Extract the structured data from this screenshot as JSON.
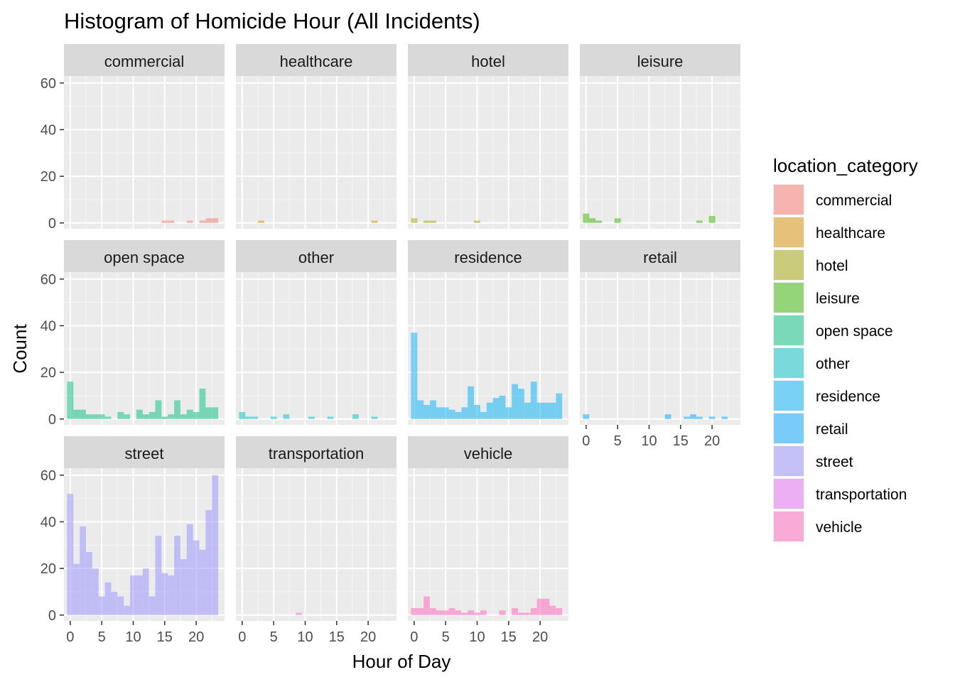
{
  "chart_data": {
    "type": "bar",
    "title": "Histogram of Homicide Hour (All Incidents)",
    "xlabel": "Hour of Day",
    "ylabel": "Count",
    "xlim": [
      -1,
      24.5
    ],
    "ylim": [
      -2.5,
      63
    ],
    "x_ticks": [
      0,
      5,
      10,
      15,
      20
    ],
    "y_ticks": [
      0,
      20,
      40,
      60
    ],
    "grid": true,
    "legend": {
      "title": "location_category",
      "position": "right"
    },
    "hours": [
      0,
      1,
      2,
      3,
      4,
      5,
      6,
      7,
      8,
      9,
      10,
      11,
      12,
      13,
      14,
      15,
      16,
      17,
      18,
      19,
      20,
      21,
      22,
      23
    ],
    "series": [
      {
        "name": "commercial",
        "color": "#F8766D",
        "values": [
          0,
          0,
          0,
          0,
          0,
          0,
          0,
          0,
          0,
          0,
          0,
          0,
          0,
          0,
          0,
          1,
          1,
          0,
          0,
          1,
          0,
          1,
          2,
          2
        ]
      },
      {
        "name": "healthcare",
        "color": "#D89000",
        "values": [
          0,
          0,
          0,
          1,
          0,
          0,
          0,
          0,
          0,
          0,
          0,
          0,
          0,
          0,
          0,
          0,
          0,
          0,
          0,
          0,
          0,
          1,
          0,
          0
        ]
      },
      {
        "name": "hotel",
        "color": "#A3A500",
        "values": [
          2,
          0,
          1,
          1,
          0,
          0,
          0,
          0,
          0,
          0,
          1,
          0,
          0,
          0,
          0,
          0,
          0,
          0,
          0,
          0,
          0,
          0,
          0,
          0
        ]
      },
      {
        "name": "leisure",
        "color": "#39B600",
        "values": [
          4,
          2,
          1,
          0,
          0,
          2,
          0,
          0,
          0,
          0,
          0,
          0,
          0,
          0,
          0,
          0,
          0,
          0,
          1,
          0,
          3,
          0,
          0,
          0
        ]
      },
      {
        "name": "open space",
        "color": "#00BF7D",
        "values": [
          16,
          4,
          4,
          2,
          2,
          2,
          1,
          0,
          3,
          2,
          0,
          4,
          2,
          3,
          8,
          1,
          2,
          8,
          2,
          4,
          3,
          13,
          5,
          5
        ]
      },
      {
        "name": "other",
        "color": "#00BFC4",
        "values": [
          3,
          1,
          1,
          0,
          0,
          1,
          0,
          2,
          0,
          0,
          0,
          1,
          0,
          0,
          1,
          0,
          0,
          0,
          2,
          0,
          0,
          1,
          0,
          0
        ]
      },
      {
        "name": "residence",
        "color": "#00B0F6",
        "values": [
          37,
          8,
          6,
          8,
          5,
          5,
          4,
          3,
          5,
          14,
          6,
          3,
          7,
          9,
          10,
          5,
          15,
          13,
          7,
          16,
          7,
          7,
          7,
          11
        ]
      },
      {
        "name": "retail",
        "color": "#00A5FF",
        "values": [
          2,
          0,
          0,
          0,
          0,
          0,
          0,
          0,
          0,
          0,
          0,
          0,
          0,
          2,
          0,
          0,
          1,
          2,
          1,
          0,
          1,
          0,
          1,
          0
        ]
      },
      {
        "name": "street",
        "color": "#9590FF",
        "values": [
          52,
          22,
          38,
          27,
          20,
          8,
          14,
          10,
          8,
          4,
          17,
          17,
          20,
          8,
          34,
          18,
          17,
          34,
          24,
          39,
          32,
          28,
          45,
          60
        ]
      },
      {
        "name": "transportation",
        "color": "#E76BF3",
        "values": [
          0,
          0,
          0,
          0,
          0,
          0,
          0,
          0,
          0,
          1,
          0,
          0,
          0,
          0,
          0,
          0,
          0,
          0,
          0,
          0,
          0,
          0,
          0,
          0
        ]
      },
      {
        "name": "vehicle",
        "color": "#FF62BC",
        "values": [
          3,
          3,
          8,
          3,
          2,
          2,
          3,
          2,
          1,
          2,
          1,
          2,
          0,
          0,
          2,
          0,
          3,
          1,
          1,
          3,
          7,
          7,
          4,
          3
        ]
      }
    ]
  }
}
